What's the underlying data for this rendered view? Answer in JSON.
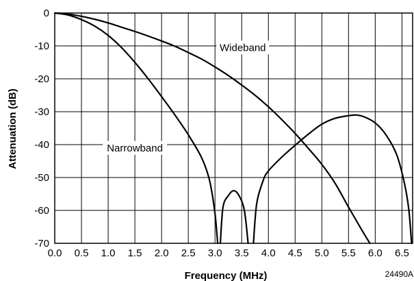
{
  "chart_data": {
    "type": "line",
    "xlabel": "Frequency (MHz)",
    "ylabel": "Attenuation (dB)",
    "xlim": [
      0,
      6.7
    ],
    "ylim": [
      -70,
      0
    ],
    "x_ticks": [
      "0.0",
      "0.5",
      "1.0",
      "1.5",
      "2.0",
      "2.5",
      "3.0",
      "3.5",
      "4.0",
      "4.5",
      "5.0",
      "5.5",
      "6.0",
      "6.5"
    ],
    "y_ticks": [
      "0",
      "-10",
      "-20",
      "-30",
      "-40",
      "-50",
      "-60",
      "-70"
    ],
    "grid": true,
    "figure_id": "24490A",
    "series": [
      {
        "name": "Wideband",
        "points": [
          [
            0.0,
            0.0
          ],
          [
            0.25,
            -0.3
          ],
          [
            0.5,
            -1.0
          ],
          [
            0.75,
            -1.9
          ],
          [
            1.0,
            -3.0
          ],
          [
            1.25,
            -4.3
          ],
          [
            1.5,
            -5.6
          ],
          [
            1.75,
            -7.0
          ],
          [
            2.0,
            -8.5
          ],
          [
            2.25,
            -10.1
          ],
          [
            2.5,
            -12.0
          ],
          [
            2.75,
            -14.0
          ],
          [
            3.0,
            -16.4
          ],
          [
            3.25,
            -19.0
          ],
          [
            3.5,
            -21.9
          ],
          [
            3.75,
            -25.0
          ],
          [
            4.0,
            -28.5
          ],
          [
            4.25,
            -32.4
          ],
          [
            4.5,
            -36.6
          ],
          [
            4.75,
            -41.2
          ],
          [
            5.0,
            -46.0
          ],
          [
            5.25,
            -51.8
          ],
          [
            5.5,
            -59.0
          ],
          [
            5.75,
            -66.0
          ],
          [
            5.9,
            -70.0
          ]
        ]
      },
      {
        "name": "Narrowband",
        "segments": [
          [
            [
              0.0,
              0.0
            ],
            [
              0.25,
              -0.6
            ],
            [
              0.5,
              -2.0
            ],
            [
              0.75,
              -4.0
            ],
            [
              1.0,
              -6.8
            ],
            [
              1.25,
              -10.5
            ],
            [
              1.5,
              -15.0
            ],
            [
              1.75,
              -20.0
            ],
            [
              2.0,
              -25.4
            ],
            [
              2.25,
              -31.0
            ],
            [
              2.5,
              -37.0
            ],
            [
              2.75,
              -44.0
            ],
            [
              2.9,
              -51.0
            ],
            [
              3.0,
              -61.0
            ],
            [
              3.05,
              -70.0
            ]
          ],
          [
            [
              3.1,
              -70.0
            ],
            [
              3.15,
              -59.0
            ],
            [
              3.25,
              -55.5
            ],
            [
              3.35,
              -54.0
            ],
            [
              3.45,
              -55.5
            ],
            [
              3.55,
              -60.0
            ],
            [
              3.62,
              -70.0
            ]
          ],
          [
            [
              3.72,
              -70.0
            ],
            [
              3.78,
              -58.0
            ],
            [
              3.9,
              -51.0
            ],
            [
              4.0,
              -48.0
            ],
            [
              4.25,
              -43.8
            ],
            [
              4.5,
              -40.2
            ],
            [
              4.75,
              -36.8
            ],
            [
              5.0,
              -33.8
            ],
            [
              5.25,
              -32.0
            ],
            [
              5.5,
              -31.2
            ],
            [
              5.65,
              -31.0
            ],
            [
              5.8,
              -31.6
            ],
            [
              6.0,
              -33.4
            ],
            [
              6.2,
              -37.0
            ],
            [
              6.4,
              -43.0
            ],
            [
              6.55,
              -52.0
            ],
            [
              6.63,
              -60.0
            ],
            [
              6.68,
              -70.0
            ]
          ]
        ]
      }
    ],
    "annotations": [
      {
        "text": "Wideband",
        "x": 3.52,
        "y": -10.5
      },
      {
        "text": "Narrowband",
        "x": 1.5,
        "y": -41
      }
    ]
  }
}
